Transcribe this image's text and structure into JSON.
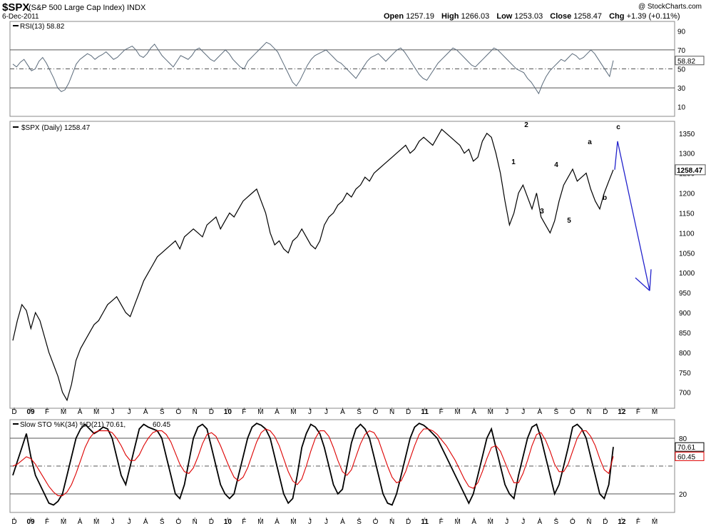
{
  "header": {
    "symbol": "$SPX",
    "name": "(S&P 500 Large Cap Index) INDX",
    "date": "6-Dec-2011",
    "logo": "@ StockCharts.com",
    "open_label": "Open",
    "open": "1257.19",
    "high_label": "High",
    "high": "1266.03",
    "low_label": "Low",
    "low": "1253.03",
    "close_label": "Close",
    "close": "1258.47",
    "chg_label": "Chg",
    "chg": "+1.39 (+0.11%)"
  },
  "chart_data": [
    {
      "type": "line",
      "panel": "rsi",
      "label": "RSI(13) 58.82",
      "last_value_tag": "58.82",
      "ylim": [
        0,
        100
      ],
      "yticks": [
        10,
        30,
        50,
        70,
        90
      ],
      "reference_lines": [
        30,
        50,
        70
      ],
      "series": [
        {
          "values": [
            55,
            52,
            57,
            60,
            54,
            48,
            50,
            58,
            62,
            56,
            48,
            40,
            30,
            26,
            28,
            35,
            45,
            55,
            60,
            63,
            66,
            64,
            60,
            63,
            65,
            68,
            64,
            60,
            62,
            66,
            70,
            72,
            74,
            70,
            64,
            62,
            66,
            72,
            76,
            70,
            64,
            60,
            56,
            52,
            58,
            64,
            62,
            60,
            64,
            70,
            72,
            68,
            64,
            60,
            58,
            62,
            66,
            70,
            66,
            60,
            56,
            52,
            50,
            58,
            62,
            66,
            70,
            74,
            78,
            76,
            72,
            68,
            60,
            52,
            44,
            36,
            32,
            38,
            46,
            54,
            60,
            64,
            66,
            68,
            70,
            66,
            62,
            58,
            56,
            52,
            48,
            44,
            40,
            46,
            52,
            58,
            62,
            64,
            66,
            62,
            58,
            62,
            66,
            70,
            72,
            68,
            62,
            56,
            50,
            44,
            40,
            38,
            44,
            50,
            56,
            60,
            64,
            68,
            72,
            70,
            66,
            62,
            58,
            54,
            52,
            56,
            60,
            64,
            68,
            72,
            70,
            66,
            62,
            58,
            54,
            50,
            48,
            46,
            40,
            36,
            30,
            24,
            34,
            42,
            48,
            52,
            56,
            60,
            58,
            62,
            66,
            64,
            60,
            62,
            66,
            70,
            66,
            60,
            54,
            48,
            42,
            58.82
          ]
        }
      ],
      "x_labels": [
        "D",
        "09",
        "F",
        "M",
        "A",
        "M",
        "J",
        "J",
        "A",
        "S",
        "O",
        "N",
        "D",
        "10",
        "F",
        "M",
        "A",
        "M",
        "J",
        "J",
        "A",
        "S",
        "O",
        "N",
        "D",
        "11",
        "F",
        "M",
        "A",
        "M",
        "J",
        "J",
        "A",
        "S",
        "O",
        "N",
        "D",
        "12",
        "F",
        "M"
      ]
    },
    {
      "type": "line",
      "panel": "price",
      "label": "$SPX (Daily) 1258.47",
      "last_value_tag": "1258.47",
      "ylim": [
        660,
        1380
      ],
      "yticks": [
        700,
        750,
        800,
        850,
        900,
        950,
        1000,
        1050,
        1100,
        1150,
        1200,
        1250,
        1300,
        1350
      ],
      "series": [
        {
          "name": "$SPX",
          "values": [
            830,
            880,
            920,
            905,
            860,
            900,
            880,
            840,
            800,
            770,
            740,
            700,
            680,
            720,
            780,
            810,
            830,
            850,
            870,
            880,
            900,
            920,
            930,
            940,
            920,
            900,
            890,
            920,
            950,
            980,
            1000,
            1020,
            1040,
            1050,
            1060,
            1070,
            1080,
            1060,
            1090,
            1100,
            1110,
            1100,
            1090,
            1120,
            1130,
            1140,
            1110,
            1130,
            1150,
            1140,
            1160,
            1180,
            1190,
            1200,
            1210,
            1180,
            1150,
            1100,
            1070,
            1080,
            1060,
            1050,
            1080,
            1090,
            1110,
            1090,
            1070,
            1060,
            1080,
            1120,
            1140,
            1150,
            1170,
            1180,
            1200,
            1190,
            1210,
            1220,
            1240,
            1230,
            1250,
            1260,
            1270,
            1280,
            1290,
            1300,
            1310,
            1320,
            1300,
            1310,
            1330,
            1340,
            1330,
            1320,
            1340,
            1360,
            1350,
            1340,
            1330,
            1320,
            1300,
            1310,
            1280,
            1290,
            1330,
            1350,
            1340,
            1300,
            1250,
            1180,
            1120,
            1150,
            1200,
            1220,
            1190,
            1160,
            1200,
            1140,
            1120,
            1100,
            1130,
            1180,
            1220,
            1240,
            1260,
            1230,
            1240,
            1250,
            1210,
            1180,
            1160,
            1200,
            1230,
            1258.47
          ]
        }
      ],
      "annotations": {
        "wave_labels_red": [
          "1",
          "2",
          "3",
          "4",
          "5"
        ],
        "wave_labels_blue": [
          "a",
          "b",
          "c"
        ],
        "projection_color": "#2222cc"
      }
    },
    {
      "type": "line",
      "panel": "stochastic",
      "label_black": "Slow STO %K(34) %D(21) 70.61,",
      "label_red": "60.45",
      "last_value_tags": [
        "70.61",
        "60.45"
      ],
      "ylim": [
        0,
        100
      ],
      "yticks": [
        20,
        80
      ],
      "reference_lines": [
        20,
        50,
        80
      ],
      "series": [
        {
          "values": [
            40,
            55,
            70,
            85,
            60,
            40,
            30,
            20,
            10,
            8,
            12,
            20,
            40,
            60,
            80,
            90,
            95,
            90,
            85,
            88,
            92,
            90,
            80,
            60,
            40,
            30,
            50,
            70,
            90,
            95,
            92,
            90,
            88,
            80,
            60,
            40,
            20,
            15,
            30,
            55,
            80,
            92,
            95,
            90,
            70,
            50,
            30,
            20,
            15,
            20,
            40,
            60,
            80,
            92,
            96,
            94,
            90,
            80,
            60,
            40,
            20,
            10,
            15,
            40,
            70,
            85,
            95,
            92,
            85,
            70,
            50,
            30,
            20,
            25,
            50,
            75,
            90,
            95,
            90,
            80,
            60,
            40,
            20,
            10,
            8,
            20,
            40,
            60,
            80,
            92,
            96,
            94,
            90,
            85,
            80,
            70,
            60,
            50,
            40,
            30,
            20,
            10,
            20,
            40,
            60,
            80,
            90,
            70,
            50,
            30,
            20,
            15,
            40,
            60,
            80,
            92,
            95,
            80,
            60,
            40,
            20,
            30,
            50,
            70,
            92,
            95,
            90,
            80,
            60,
            40,
            20,
            15,
            30,
            70.61
          ]
        },
        {
          "values": [
            50,
            52,
            56,
            60,
            58,
            52,
            44,
            36,
            28,
            22,
            18,
            18,
            22,
            30,
            42,
            56,
            70,
            80,
            86,
            88,
            88,
            88,
            86,
            80,
            72,
            62,
            56,
            56,
            62,
            72,
            80,
            86,
            88,
            88,
            84,
            76,
            64,
            52,
            44,
            42,
            48,
            60,
            74,
            84,
            86,
            82,
            72,
            60,
            48,
            38,
            34,
            38,
            48,
            62,
            76,
            86,
            90,
            88,
            82,
            72,
            58,
            44,
            34,
            30,
            36,
            50,
            66,
            80,
            88,
            88,
            82,
            70,
            56,
            44,
            40,
            46,
            60,
            74,
            84,
            88,
            86,
            78,
            64,
            50,
            38,
            32,
            34,
            44,
            58,
            72,
            84,
            90,
            90,
            88,
            84,
            78,
            72,
            64,
            56,
            46,
            36,
            28,
            26,
            32,
            44,
            58,
            70,
            72,
            66,
            54,
            42,
            32,
            32,
            42,
            56,
            72,
            84,
            86,
            78,
            66,
            52,
            44,
            44,
            52,
            66,
            80,
            88,
            88,
            82,
            72,
            58,
            46,
            42,
            60.45
          ]
        }
      ],
      "series_colors": [
        "#000000",
        "#dd0000"
      ]
    }
  ],
  "colors": {
    "grid": "#dddddd",
    "panel_border": "#888888",
    "rsi_line": "#5a6a7a",
    "wave_red": "#dd0000",
    "wave_blue": "#0000cc",
    "tag_price_bg": "#ffffff"
  }
}
